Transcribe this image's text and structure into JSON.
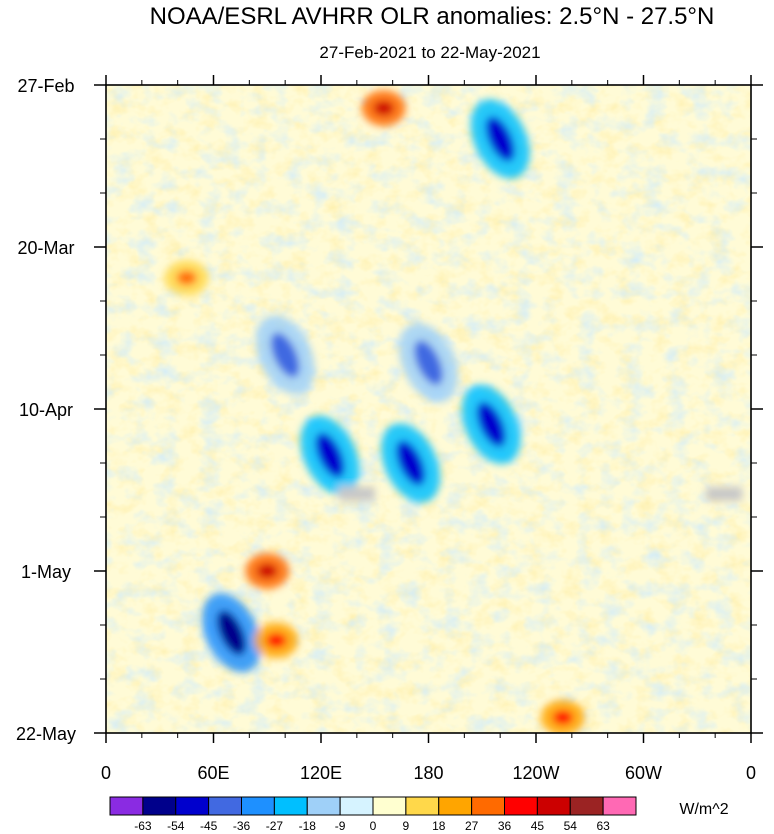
{
  "chart_data": {
    "type": "heatmap",
    "title": "NOAA/ESRL AVHRR OLR anomalies: 2.5°N - 27.5°N",
    "subtitle": "27-Feb-2021 to 22-May-2021",
    "xlabel": "",
    "ylabel": "",
    "x_ticks": [
      "0",
      "60E",
      "120E",
      "180",
      "120W",
      "60W",
      "0"
    ],
    "x_tick_values": [
      0,
      60,
      120,
      180,
      240,
      300,
      360
    ],
    "xlim": [
      0,
      360
    ],
    "y_ticks": [
      "27-Feb",
      "20-Mar",
      "10-Apr",
      "1-May",
      "22-May"
    ],
    "y_tick_values": [
      0,
      21,
      42,
      63,
      84
    ],
    "ylim": [
      0,
      84
    ],
    "y_direction": "top-to-bottom",
    "colorbar": {
      "units": "W/m^2",
      "levels": [
        -63,
        -54,
        -45,
        -36,
        -27,
        -18,
        -9,
        0,
        9,
        18,
        27,
        36,
        45,
        54,
        63
      ],
      "colors": [
        "#8a2be2",
        "#00008b",
        "#0000cd",
        "#4169e1",
        "#1e90ff",
        "#00bfff",
        "#9fd0f8",
        "#d6f3ff",
        "#ffffd0",
        "#ffd84a",
        "#ffa500",
        "#ff6a00",
        "#ff0000",
        "#cc0000",
        "#9b2323",
        "#ff69b4"
      ]
    },
    "features": [
      {
        "label": "strong negative anomaly",
        "lon": 70,
        "day": 71,
        "value": -63
      },
      {
        "label": "negative anomaly",
        "lon": 125,
        "day": 48,
        "value": -54
      },
      {
        "label": "negative anomaly",
        "lon": 170,
        "day": 49,
        "value": -54
      },
      {
        "label": "negative anomaly",
        "lon": 215,
        "day": 44,
        "value": -54
      },
      {
        "label": "negative anomaly",
        "lon": 220,
        "day": 7,
        "value": -54
      },
      {
        "label": "negative anomaly",
        "lon": 100,
        "day": 35,
        "value": -45
      },
      {
        "label": "negative anomaly",
        "lon": 180,
        "day": 36,
        "value": -45
      },
      {
        "label": "positive anomaly",
        "lon": 155,
        "day": 3,
        "value": 45
      },
      {
        "label": "positive anomaly",
        "lon": 90,
        "day": 63,
        "value": 45
      },
      {
        "label": "positive anomaly",
        "lon": 95,
        "day": 72,
        "value": 36
      },
      {
        "label": "positive anomaly",
        "lon": 255,
        "day": 82,
        "value": 36
      },
      {
        "label": "positive anomaly",
        "lon": 45,
        "day": 25,
        "value": 27
      },
      {
        "label": "missing data",
        "lon": 140,
        "day": 53,
        "value": null
      },
      {
        "label": "missing data",
        "lon": 345,
        "day": 53,
        "value": null
      }
    ]
  }
}
